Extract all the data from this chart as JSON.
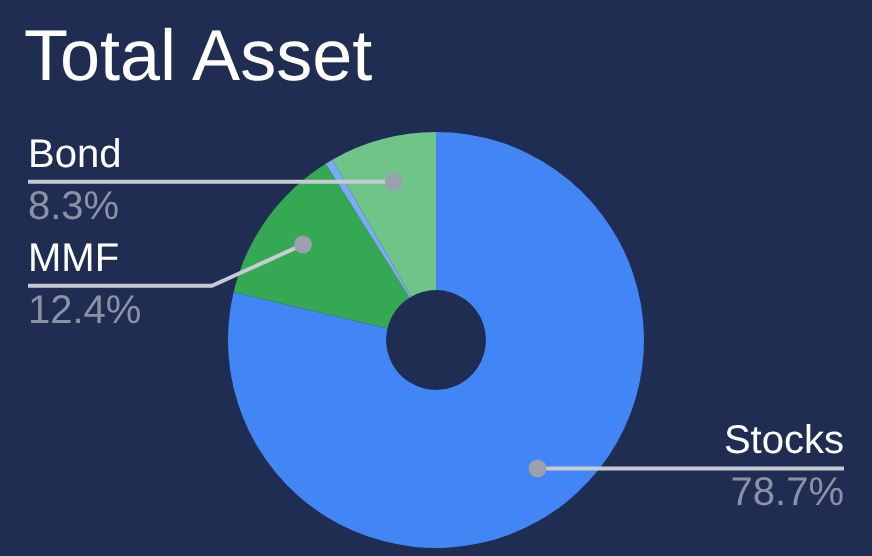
{
  "chart_data": {
    "type": "donut",
    "title": "Total Asset",
    "categories": [
      "Stocks",
      "MMF",
      null,
      "Bond"
    ],
    "values": [
      78.7,
      12.4,
      0.6,
      8.3
    ],
    "colors": [
      "#4285f4",
      "#34a853",
      "#7baaf7",
      "#6fc488"
    ],
    "value_labels": [
      "78.7%",
      "12.4%",
      null,
      "8.3%"
    ],
    "legend": false
  }
}
